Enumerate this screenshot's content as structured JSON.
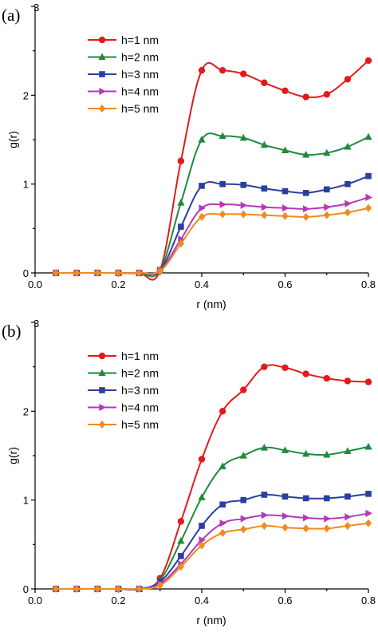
{
  "chart_data": [
    {
      "type": "line",
      "panel_label": "(a)",
      "xlabel": "r (nm)",
      "ylabel": "g(r)",
      "xlim": [
        0.0,
        0.8
      ],
      "ylim": [
        0,
        3
      ],
      "xticks": [
        "0.0",
        "0.2",
        "0.4",
        "0.6",
        "0.8"
      ],
      "yticks": [
        "0",
        "1",
        "2",
        "3"
      ],
      "grid": false,
      "legend_position": "top-left",
      "x": [
        0.05,
        0.1,
        0.15,
        0.2,
        0.25,
        0.3,
        0.35,
        0.4,
        0.45,
        0.5,
        0.55,
        0.6,
        0.65,
        0.7,
        0.75,
        0.8
      ],
      "series": [
        {
          "name": "h=1 nm",
          "color": "#e31a1c",
          "marker": "circle",
          "values": [
            0,
            0,
            0,
            0,
            0,
            0.03,
            1.26,
            2.28,
            2.28,
            2.24,
            2.14,
            2.05,
            1.98,
            2.01,
            2.18,
            2.39
          ]
        },
        {
          "name": "h=2 nm",
          "color": "#1f8a3c",
          "marker": "triangle-up",
          "values": [
            0,
            0,
            0,
            0,
            0,
            0.03,
            0.79,
            1.5,
            1.54,
            1.52,
            1.44,
            1.38,
            1.33,
            1.35,
            1.42,
            1.53
          ]
        },
        {
          "name": "h=3 nm",
          "color": "#2a3f9e",
          "marker": "square",
          "values": [
            0,
            0,
            0,
            0,
            0,
            0.03,
            0.52,
            0.98,
            1.0,
            0.99,
            0.95,
            0.92,
            0.9,
            0.94,
            1.0,
            1.09
          ]
        },
        {
          "name": "h=4 nm",
          "color": "#b23ab8",
          "marker": "triangle-right",
          "values": [
            0,
            0,
            0,
            0,
            0,
            0.03,
            0.38,
            0.73,
            0.77,
            0.76,
            0.74,
            0.73,
            0.72,
            0.74,
            0.78,
            0.85
          ]
        },
        {
          "name": "h=5 nm",
          "color": "#f28a1e",
          "marker": "diamond",
          "values": [
            0,
            0,
            0,
            0,
            0,
            0.02,
            0.33,
            0.63,
            0.66,
            0.66,
            0.65,
            0.64,
            0.63,
            0.65,
            0.68,
            0.73
          ]
        }
      ]
    },
    {
      "type": "line",
      "panel_label": "(b)",
      "xlabel": "r (nm)",
      "ylabel": "g(r)",
      "xlim": [
        0.0,
        0.8
      ],
      "ylim": [
        0,
        3
      ],
      "xticks": [
        "0.0",
        "0.2",
        "0.4",
        "0.6",
        "0.8"
      ],
      "yticks": [
        "0",
        "1",
        "2",
        "3"
      ],
      "grid": false,
      "legend_position": "top-left",
      "x": [
        0.05,
        0.1,
        0.15,
        0.2,
        0.25,
        0.3,
        0.35,
        0.4,
        0.45,
        0.5,
        0.55,
        0.6,
        0.65,
        0.7,
        0.75,
        0.8
      ],
      "series": [
        {
          "name": "h=1 nm",
          "color": "#e31a1c",
          "marker": "circle",
          "values": [
            0,
            0,
            0,
            0,
            0,
            0.12,
            0.76,
            1.46,
            2.0,
            2.24,
            2.5,
            2.49,
            2.42,
            2.37,
            2.34,
            2.33
          ]
        },
        {
          "name": "h=2 nm",
          "color": "#1f8a3c",
          "marker": "triangle-up",
          "values": [
            0,
            0,
            0,
            0,
            0,
            0.1,
            0.54,
            1.03,
            1.38,
            1.5,
            1.59,
            1.56,
            1.52,
            1.51,
            1.55,
            1.6
          ]
        },
        {
          "name": "h=3 nm",
          "color": "#2a3f9e",
          "marker": "square",
          "values": [
            0,
            0,
            0,
            0,
            0,
            0.08,
            0.37,
            0.71,
            0.95,
            1.0,
            1.06,
            1.04,
            1.02,
            1.02,
            1.04,
            1.07
          ]
        },
        {
          "name": "h=4 nm",
          "color": "#b23ab8",
          "marker": "triangle-right",
          "values": [
            0,
            0,
            0,
            0,
            0,
            0.06,
            0.28,
            0.55,
            0.74,
            0.79,
            0.83,
            0.82,
            0.8,
            0.79,
            0.81,
            0.85
          ]
        },
        {
          "name": "h=5 nm",
          "color": "#f28a1e",
          "marker": "diamond",
          "values": [
            0,
            0,
            0,
            0,
            0,
            0.04,
            0.25,
            0.49,
            0.63,
            0.67,
            0.71,
            0.69,
            0.68,
            0.68,
            0.71,
            0.74
          ]
        }
      ]
    }
  ]
}
